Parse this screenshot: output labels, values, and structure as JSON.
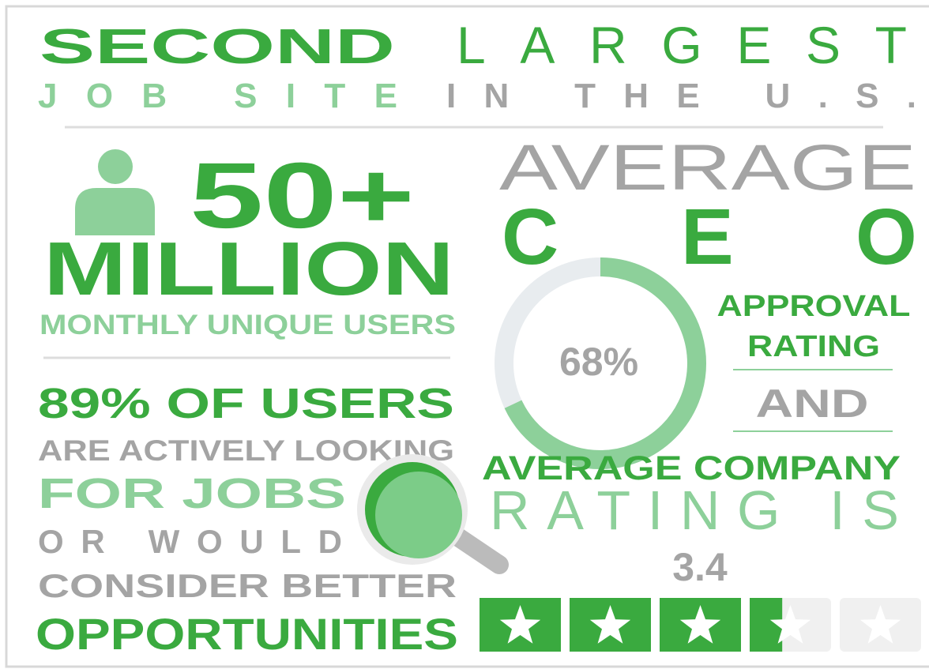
{
  "headline": {
    "word1": "SECOND",
    "word2": "LARGEST",
    "word3": "JOB SITE",
    "word4": "IN THE U.S."
  },
  "users": {
    "count": "50+",
    "unit": "MILLION",
    "caption": "MONTHLY UNIQUE USERS"
  },
  "seekers": {
    "line1": "89% OF USERS",
    "line2": "ARE ACTIVELY LOOKING",
    "line3": "FOR JOBS",
    "line4": "OR WOULD",
    "line5": "CONSIDER BETTER",
    "line6": "OPPORTUNITIES"
  },
  "ceo": {
    "line1": "AVERAGE",
    "letters": [
      "C",
      "E",
      "O"
    ],
    "approval": {
      "value": 68,
      "label": "68%"
    },
    "line2": "APPROVAL",
    "line3": "RATING",
    "line4": "AND"
  },
  "company": {
    "line1": "AVERAGE COMPANY",
    "line2": "RATING IS",
    "rating": {
      "value": 3.4,
      "label": "3.4"
    },
    "max_stars": 5
  }
}
